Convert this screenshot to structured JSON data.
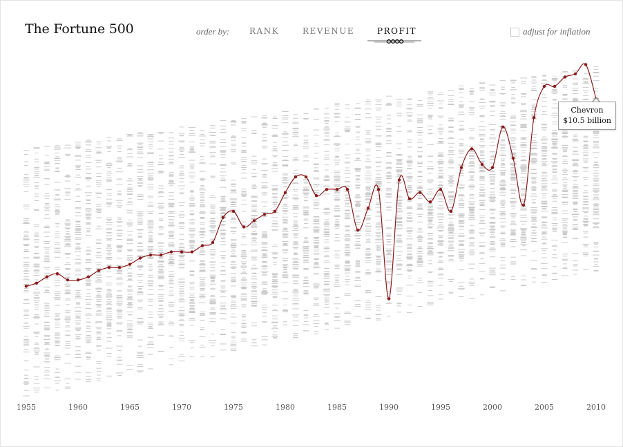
{
  "header": {
    "title": "The Fortune 500",
    "order_by_label": "order by:",
    "sort_options": [
      {
        "label": "RANK",
        "active": false
      },
      {
        "label": "REVENUE",
        "active": false
      },
      {
        "label": "PROFIT",
        "active": true
      }
    ],
    "inflation_label": "adjust for inflation",
    "inflation_checked": false
  },
  "tooltip": {
    "company": "Chevron",
    "value": "$10.5 billion"
  },
  "colors": {
    "highlight": "#8b1a1a",
    "dash": "#c9c9c9",
    "text": "#111111"
  },
  "chart_data": {
    "type": "line",
    "x_label": "",
    "y_label": "",
    "x_ticks": [
      "1955",
      "1960",
      "1965",
      "1970",
      "1975",
      "1980",
      "1985",
      "1990",
      "1995",
      "2000",
      "2005",
      "2010"
    ],
    "x_range": [
      1955,
      2010
    ],
    "highlighted_series": {
      "name": "Chevron",
      "x": [
        1955,
        1956,
        1957,
        1958,
        1959,
        1960,
        1961,
        1962,
        1963,
        1964,
        1965,
        1966,
        1967,
        1968,
        1969,
        1970,
        1971,
        1972,
        1973,
        1974,
        1975,
        1976,
        1977,
        1978,
        1979,
        1980,
        1981,
        1982,
        1983,
        1984,
        1985,
        1986,
        1987,
        1988,
        1989,
        1990,
        1991,
        1992,
        1993,
        1994,
        1995,
        1996,
        1997,
        1998,
        1999,
        2000,
        2001,
        2002,
        2003,
        2004,
        2005,
        2006,
        2007,
        2008,
        2009,
        2010
      ],
      "rank_position": [
        0.36,
        0.37,
        0.39,
        0.4,
        0.38,
        0.38,
        0.39,
        0.41,
        0.42,
        0.42,
        0.43,
        0.45,
        0.46,
        0.46,
        0.47,
        0.47,
        0.47,
        0.49,
        0.5,
        0.58,
        0.6,
        0.55,
        0.57,
        0.59,
        0.6,
        0.66,
        0.71,
        0.71,
        0.65,
        0.67,
        0.67,
        0.67,
        0.54,
        0.61,
        0.67,
        0.32,
        0.7,
        0.64,
        0.66,
        0.63,
        0.67,
        0.6,
        0.74,
        0.8,
        0.75,
        0.74,
        0.87,
        0.77,
        0.62,
        0.9,
        1.0,
        1.0,
        1.03,
        1.04,
        1.07,
        0.96
      ]
    },
    "grid": false,
    "legend": "none"
  }
}
